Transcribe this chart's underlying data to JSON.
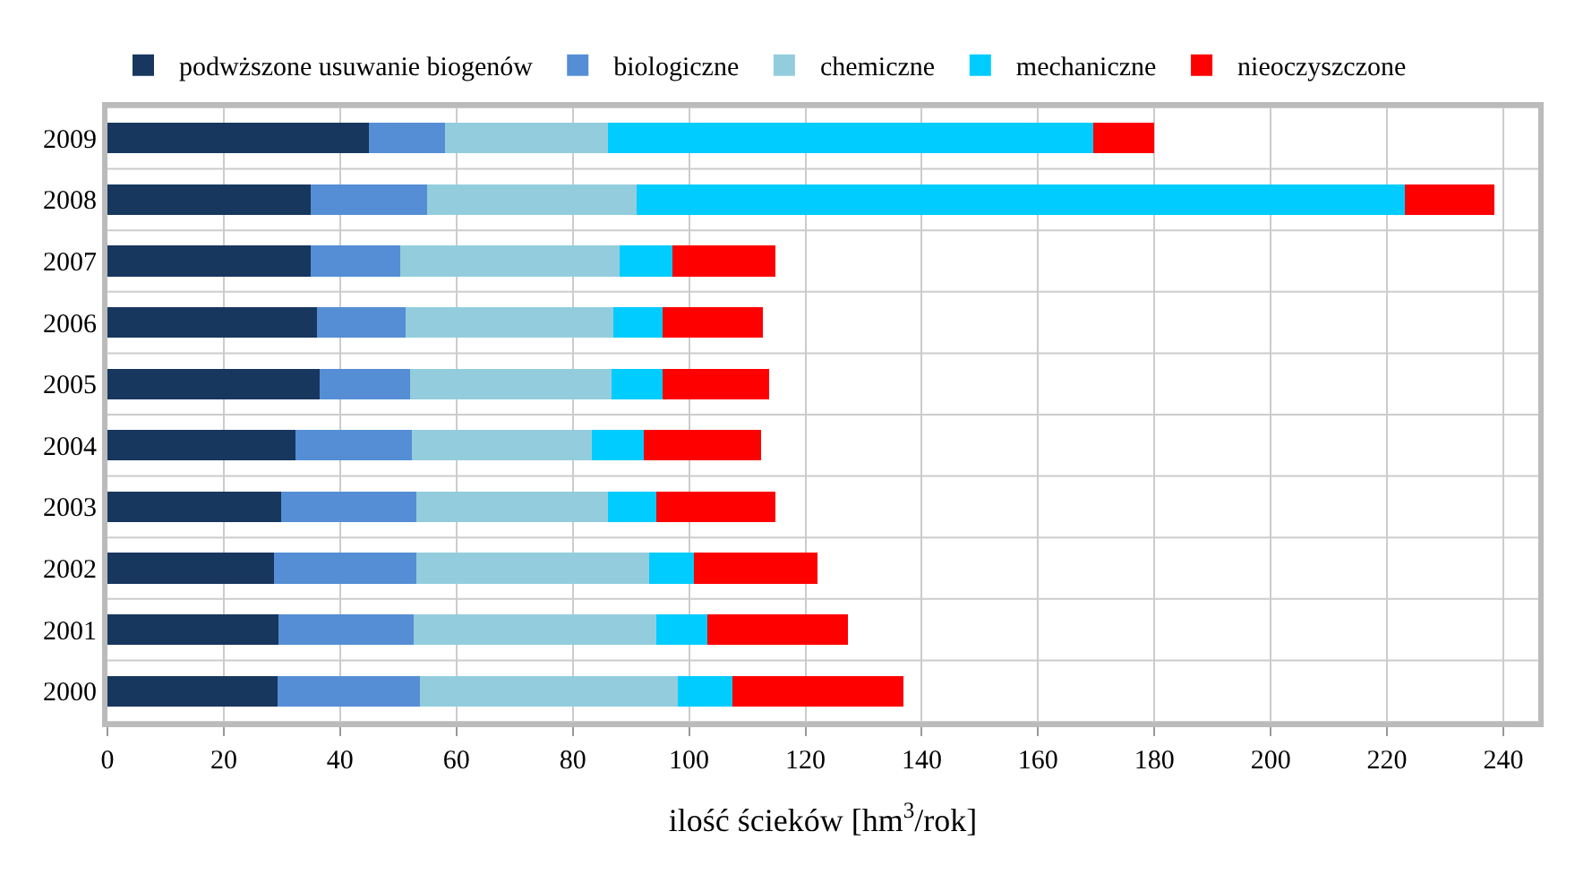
{
  "chart_data": {
    "type": "bar",
    "orientation": "horizontal",
    "stacked": true,
    "categories": [
      "2009",
      "2008",
      "2007",
      "2006",
      "2005",
      "2004",
      "2003",
      "2002",
      "2001",
      "2000"
    ],
    "series": [
      {
        "name": "podwższone usuwanie biogenów",
        "color": "#17375e",
        "values": [
          45,
          35,
          35,
          36,
          36.5,
          32.4,
          29.8,
          28.6,
          29.4,
          29.2
        ]
      },
      {
        "name": "biologiczne",
        "color": "#558ed5",
        "values": [
          13,
          20,
          15.4,
          15.2,
          15.5,
          19.9,
          23.3,
          24.5,
          23.2,
          24.5
        ]
      },
      {
        "name": "chemiczne",
        "color": "#93cddd",
        "values": [
          28,
          36,
          37.6,
          35.8,
          34.6,
          31,
          32.9,
          40.1,
          41.8,
          44.4
        ]
      },
      {
        "name": "mechaniczne",
        "color": "#00ccff",
        "values": [
          83.5,
          132,
          9.2,
          8.5,
          8.8,
          8.9,
          8.3,
          7.6,
          8.8,
          9.4
        ]
      },
      {
        "name": "nieoczyszczone",
        "color": "#ff0000",
        "values": [
          10.5,
          15.5,
          17.6,
          17.2,
          18.4,
          20.1,
          20.5,
          21.2,
          24.1,
          29.4
        ]
      }
    ],
    "xlabel": "ilość ścieków [hm$^{3}$/rok]",
    "xlim": [
      0,
      246
    ],
    "xticks": [
      0,
      20,
      40,
      60,
      80,
      100,
      120,
      140,
      160,
      180,
      200,
      220,
      240
    ],
    "grid": true,
    "legend": "top"
  }
}
